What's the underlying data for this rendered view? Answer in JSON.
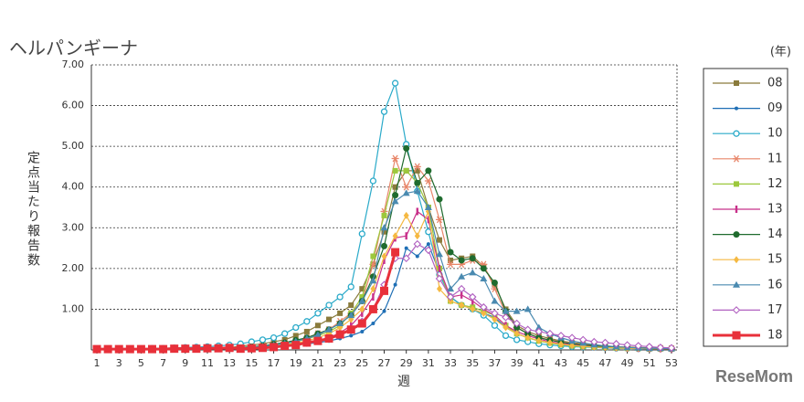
{
  "chart_data": {
    "type": "line",
    "title": "ヘルパンギーナ",
    "y_label": "定点当たり報告数",
    "x_label": "週",
    "legend_title": "(年)",
    "watermark": "ReseMom",
    "legend": "right",
    "grid": true,
    "x": [
      1,
      2,
      3,
      4,
      5,
      6,
      7,
      8,
      9,
      10,
      11,
      12,
      13,
      14,
      15,
      16,
      17,
      18,
      19,
      20,
      21,
      22,
      23,
      24,
      25,
      26,
      27,
      28,
      29,
      30,
      31,
      32,
      33,
      34,
      35,
      36,
      37,
      38,
      39,
      40,
      41,
      42,
      43,
      44,
      45,
      46,
      47,
      48,
      49,
      50,
      51,
      52,
      53
    ],
    "xlim": [
      0.5,
      53.5
    ],
    "xticks": [
      1,
      3,
      5,
      7,
      9,
      11,
      13,
      15,
      17,
      19,
      21,
      23,
      25,
      27,
      29,
      31,
      33,
      35,
      37,
      39,
      41,
      43,
      45,
      47,
      49,
      51,
      53
    ],
    "ylim": [
      0,
      7
    ],
    "yticks": [
      {
        "value": 1,
        "label": "1.00"
      },
      {
        "value": 2,
        "label": "2.00"
      },
      {
        "value": 3,
        "label": "3.00"
      },
      {
        "value": 4,
        "label": "4.00"
      },
      {
        "value": 5,
        "label": "5.00"
      },
      {
        "value": 6,
        "label": "6.00"
      },
      {
        "value": 7,
        "label": "7.00"
      }
    ],
    "series": [
      {
        "name": "08",
        "color": "#8a7b3c",
        "marker": "square",
        "width": 1.2,
        "values": [
          0.02,
          0.02,
          0.02,
          0.02,
          0.02,
          0.02,
          0.02,
          0.03,
          0.03,
          0.03,
          0.04,
          0.04,
          0.05,
          0.1,
          0.12,
          0.15,
          0.2,
          0.25,
          0.35,
          0.45,
          0.6,
          0.75,
          0.9,
          1.1,
          1.5,
          2.1,
          2.9,
          4.0,
          4.4,
          4.4,
          3.5,
          2.7,
          2.2,
          2.25,
          2.3,
          2.05,
          1.6,
          1.0,
          0.6,
          0.45,
          0.35,
          0.28,
          0.22,
          0.18,
          0.15,
          0.12,
          0.1,
          0.08,
          0.07,
          0.06,
          0.05,
          0.04,
          0.04
        ]
      },
      {
        "name": "09",
        "color": "#1f6fb5",
        "marker": "dot",
        "width": 1.2,
        "values": [
          0.02,
          0.02,
          0.02,
          0.02,
          0.02,
          0.02,
          0.02,
          0.03,
          0.03,
          0.03,
          0.04,
          0.04,
          0.05,
          0.04,
          0.05,
          0.06,
          0.08,
          0.1,
          0.12,
          0.15,
          0.18,
          0.22,
          0.28,
          0.35,
          0.45,
          0.65,
          0.95,
          1.6,
          2.5,
          2.3,
          2.6,
          1.9,
          1.3,
          1.1,
          1.0,
          0.9,
          0.8,
          0.55,
          0.4,
          0.3,
          0.22,
          0.17,
          0.13,
          0.1,
          0.08,
          0.07,
          0.06,
          0.05,
          0.04,
          0.04,
          0.03,
          0.03,
          0.03
        ]
      },
      {
        "name": "10",
        "color": "#2aaac9",
        "marker": "circle-open",
        "width": 1.2,
        "values": [
          0.03,
          0.03,
          0.03,
          0.03,
          0.03,
          0.04,
          0.04,
          0.05,
          0.06,
          0.07,
          0.08,
          0.1,
          0.12,
          0.15,
          0.2,
          0.25,
          0.3,
          0.4,
          0.55,
          0.7,
          0.9,
          1.1,
          1.3,
          1.55,
          2.85,
          4.15,
          5.85,
          6.55,
          5.05,
          3.9,
          2.9,
          1.85,
          1.3,
          1.1,
          1.0,
          0.85,
          0.6,
          0.35,
          0.25,
          0.2,
          0.15,
          0.12,
          0.1,
          0.08,
          0.07,
          0.06,
          0.05,
          0.04,
          0.04,
          0.03,
          0.03,
          0.03,
          0.03
        ]
      },
      {
        "name": "11",
        "color": "#e8866a",
        "marker": "asterisk",
        "width": 1.2,
        "values": [
          0.02,
          0.02,
          0.02,
          0.02,
          0.02,
          0.02,
          0.02,
          0.03,
          0.03,
          0.03,
          0.04,
          0.04,
          0.05,
          0.06,
          0.08,
          0.1,
          0.13,
          0.17,
          0.22,
          0.3,
          0.4,
          0.5,
          0.7,
          0.9,
          1.2,
          2.1,
          3.4,
          4.7,
          4.0,
          4.5,
          4.15,
          3.2,
          2.1,
          2.1,
          2.2,
          2.1,
          1.5,
          0.9,
          0.55,
          0.4,
          0.3,
          0.25,
          0.2,
          0.16,
          0.13,
          0.1,
          0.08,
          0.07,
          0.06,
          0.05,
          0.04,
          0.04,
          0.03
        ]
      },
      {
        "name": "12",
        "color": "#9cc83c",
        "marker": "square",
        "width": 1.2,
        "values": [
          0.02,
          0.02,
          0.02,
          0.02,
          0.02,
          0.02,
          0.02,
          0.03,
          0.03,
          0.03,
          0.04,
          0.04,
          0.05,
          0.05,
          0.07,
          0.09,
          0.12,
          0.16,
          0.2,
          0.27,
          0.35,
          0.45,
          0.6,
          0.9,
          1.3,
          2.3,
          3.3,
          4.4,
          4.4,
          4.1,
          3.5,
          2.0,
          1.2,
          1.1,
          1.05,
          0.95,
          0.85,
          0.6,
          0.4,
          0.3,
          0.22,
          0.17,
          0.13,
          0.1,
          0.08,
          0.07,
          0.06,
          0.05,
          0.04,
          0.04,
          0.03,
          0.03,
          0.03
        ]
      },
      {
        "name": "13",
        "color": "#c8308a",
        "marker": "bar",
        "width": 1.2,
        "values": [
          0.02,
          0.02,
          0.02,
          0.02,
          0.02,
          0.02,
          0.02,
          0.03,
          0.03,
          0.03,
          0.04,
          0.04,
          0.05,
          0.04,
          0.05,
          0.06,
          0.08,
          0.1,
          0.13,
          0.17,
          0.22,
          0.3,
          0.42,
          0.6,
          0.9,
          1.3,
          2.2,
          2.75,
          2.8,
          3.4,
          3.2,
          2.0,
          1.3,
          1.35,
          1.2,
          1.0,
          0.85,
          0.6,
          0.45,
          0.35,
          0.27,
          0.2,
          0.16,
          0.13,
          0.1,
          0.08,
          0.07,
          0.06,
          0.05,
          0.04,
          0.04,
          0.03,
          0.03
        ]
      },
      {
        "name": "14",
        "color": "#1f6b2e",
        "marker": "dot-large",
        "width": 1.2,
        "values": [
          0.02,
          0.02,
          0.02,
          0.02,
          0.02,
          0.02,
          0.02,
          0.03,
          0.03,
          0.03,
          0.04,
          0.04,
          0.05,
          0.06,
          0.08,
          0.1,
          0.14,
          0.18,
          0.24,
          0.3,
          0.4,
          0.5,
          0.65,
          0.85,
          1.2,
          1.8,
          2.55,
          3.8,
          4.95,
          4.1,
          4.4,
          3.7,
          2.4,
          2.2,
          2.25,
          2.0,
          1.65,
          0.95,
          0.55,
          0.4,
          0.3,
          0.24,
          0.19,
          0.15,
          0.12,
          0.1,
          0.08,
          0.07,
          0.06,
          0.05,
          0.04,
          0.04,
          0.03
        ]
      },
      {
        "name": "15",
        "color": "#f5b942",
        "marker": "diamond",
        "width": 1.2,
        "values": [
          0.02,
          0.02,
          0.02,
          0.02,
          0.02,
          0.02,
          0.02,
          0.03,
          0.03,
          0.03,
          0.04,
          0.04,
          0.05,
          0.05,
          0.06,
          0.08,
          0.1,
          0.13,
          0.17,
          0.22,
          0.3,
          0.4,
          0.55,
          0.75,
          1.0,
          1.5,
          2.3,
          2.8,
          3.3,
          2.8,
          3.4,
          1.5,
          1.2,
          1.1,
          1.0,
          0.9,
          0.75,
          0.55,
          0.4,
          0.3,
          0.23,
          0.18,
          0.14,
          0.11,
          0.09,
          0.07,
          0.06,
          0.05,
          0.04,
          0.04,
          0.03,
          0.03,
          0.03
        ]
      },
      {
        "name": "16",
        "color": "#4a8ab0",
        "marker": "triangle",
        "width": 1.2,
        "values": [
          0.02,
          0.02,
          0.02,
          0.02,
          0.02,
          0.02,
          0.02,
          0.03,
          0.03,
          0.03,
          0.04,
          0.04,
          0.05,
          0.05,
          0.07,
          0.09,
          0.12,
          0.16,
          0.21,
          0.28,
          0.37,
          0.5,
          0.65,
          0.85,
          1.2,
          1.7,
          3.0,
          3.65,
          3.85,
          3.9,
          3.5,
          2.35,
          1.5,
          1.8,
          1.9,
          1.75,
          1.2,
          0.95,
          0.95,
          1.0,
          0.55,
          0.4,
          0.3,
          0.22,
          0.17,
          0.13,
          0.1,
          0.08,
          0.06,
          0.05,
          0.04,
          0.04,
          0.03
        ]
      },
      {
        "name": "17",
        "color": "#b060c0",
        "marker": "diamond-open",
        "width": 1.2,
        "values": [
          0.02,
          0.02,
          0.02,
          0.02,
          0.02,
          0.02,
          0.02,
          0.03,
          0.03,
          0.03,
          0.04,
          0.04,
          0.05,
          0.04,
          0.05,
          0.06,
          0.08,
          0.1,
          0.13,
          0.17,
          0.22,
          0.28,
          0.37,
          0.5,
          0.7,
          1.0,
          1.6,
          2.25,
          2.25,
          2.6,
          2.45,
          1.75,
          1.3,
          1.5,
          1.3,
          1.05,
          0.9,
          0.8,
          0.65,
          0.5,
          0.45,
          0.4,
          0.35,
          0.3,
          0.25,
          0.2,
          0.18,
          0.15,
          0.12,
          0.1,
          0.08,
          0.06,
          0.05
        ]
      },
      {
        "name": "18",
        "color": "#e8303a",
        "marker": "square-large",
        "width": 3,
        "values": [
          0.02,
          0.02,
          0.02,
          0.02,
          0.02,
          0.02,
          0.02,
          0.03,
          0.03,
          0.03,
          0.04,
          0.04,
          0.05,
          0.03,
          0.04,
          0.05,
          0.07,
          0.1,
          0.12,
          0.18,
          0.22,
          0.28,
          0.38,
          0.5,
          0.65,
          1.0,
          1.45,
          2.4,
          null,
          null,
          null,
          null,
          null,
          null,
          null,
          null,
          null,
          null,
          null,
          null,
          null,
          null,
          null,
          null,
          null,
          null,
          null,
          null,
          null,
          null,
          null,
          null,
          null
        ]
      }
    ]
  }
}
